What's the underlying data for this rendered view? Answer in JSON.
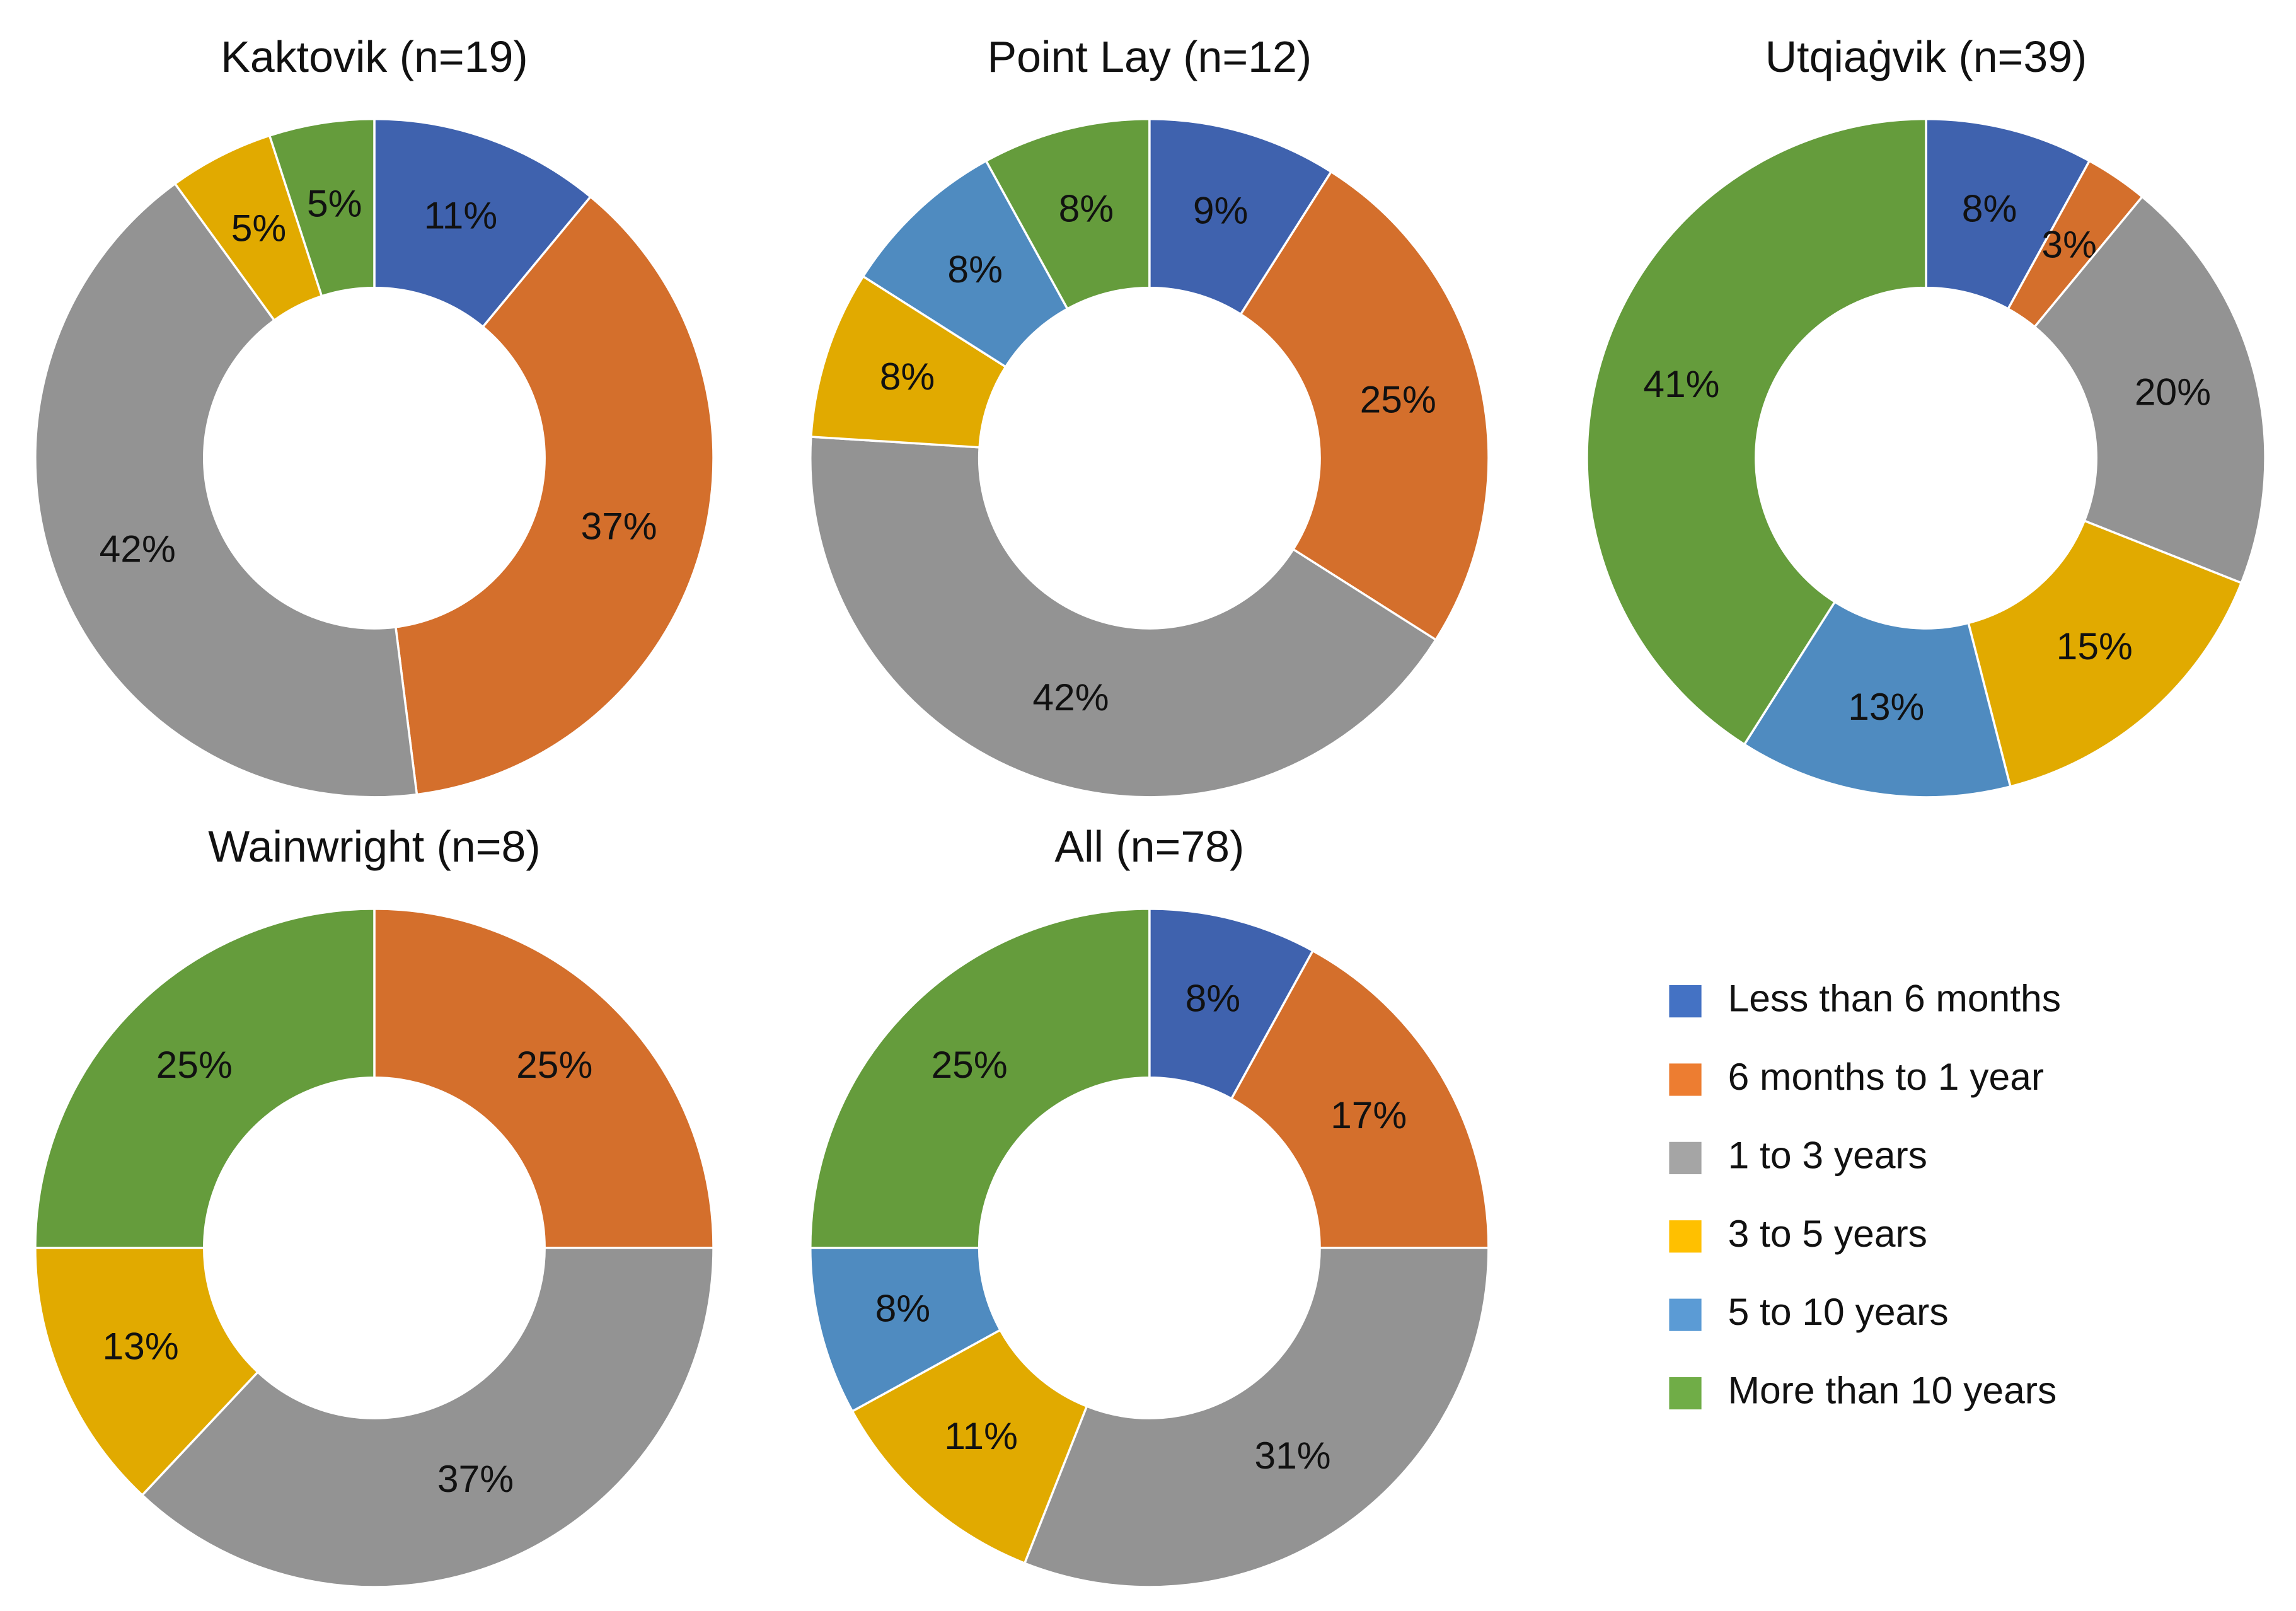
{
  "chart_data": [
    {
      "type": "pie",
      "title": "Kaktovik (n=19)",
      "categories": [
        "Less than 6 months",
        "6 months to 1 year",
        "1 to 3 years",
        "3 to 5 years",
        "More than 10 years"
      ],
      "values": [
        11,
        37,
        42,
        5,
        5
      ],
      "value_labels": [
        "11%",
        "37%",
        "42%",
        "5%",
        "5%"
      ],
      "colors": [
        "#3f62ae",
        "#d46f2c",
        "#939393",
        "#e1aa00",
        "#659c3c"
      ]
    },
    {
      "type": "pie",
      "title": "Point Lay (n=12)",
      "categories": [
        "Less than 6 months",
        "6 months to 1 year",
        "1 to 3 years",
        "3 to 5 years",
        "5 to 10 years",
        "More than 10 years"
      ],
      "values": [
        9,
        25,
        42,
        8,
        8,
        8
      ],
      "value_labels": [
        "9%",
        "25%",
        "42%",
        "8%",
        "8%",
        "8%"
      ],
      "colors": [
        "#3f62ae",
        "#d46f2c",
        "#939393",
        "#e1aa00",
        "#4f8bc0",
        "#659c3c"
      ]
    },
    {
      "type": "pie",
      "title": "Utqiaġvik (n=39)",
      "categories": [
        "Less than 6 months",
        "6 months to 1 year",
        "1 to 3 years",
        "3 to 5 years",
        "5 to 10 years",
        "More than 10 years"
      ],
      "values": [
        8,
        3,
        20,
        15,
        13,
        41
      ],
      "value_labels": [
        "8%",
        "3%",
        "20%",
        "15%",
        "13%",
        "41%"
      ],
      "colors": [
        "#3f62ae",
        "#d46f2c",
        "#939393",
        "#e1aa00",
        "#4f8bc0",
        "#659c3c"
      ]
    },
    {
      "type": "pie",
      "title": "Wainwright (n=8)",
      "categories": [
        "6 months to 1 year",
        "1 to 3 years",
        "3 to 5 years",
        "More than 10 years"
      ],
      "values": [
        25,
        37,
        13,
        25
      ],
      "value_labels": [
        "25%",
        "37%",
        "13%",
        "25%"
      ],
      "colors": [
        "#d46f2c",
        "#939393",
        "#e1aa00",
        "#659c3c"
      ]
    },
    {
      "type": "pie",
      "title": "All (n=78)",
      "categories": [
        "Less than 6 months",
        "6 months to 1 year",
        "1 to 3 years",
        "3 to 5 years",
        "5 to 10 years",
        "More than 10 years"
      ],
      "values": [
        8,
        17,
        31,
        11,
        8,
        25
      ],
      "value_labels": [
        "8%",
        "17%",
        "31%",
        "11%",
        "8%",
        "25%"
      ],
      "colors": [
        "#3f62ae",
        "#d46f2c",
        "#939393",
        "#e1aa00",
        "#4f8bc0",
        "#659c3c"
      ]
    }
  ],
  "legend": [
    {
      "name": "Less than 6 months",
      "color": "#4472c4"
    },
    {
      "name": "6 months to 1 year",
      "color": "#ed7d31"
    },
    {
      "name": "1 to 3 years",
      "color": "#a5a5a5"
    },
    {
      "name": "3 to 5 years",
      "color": "#ffc000"
    },
    {
      "name": "5 to 10 years",
      "color": "#5b9bd5"
    },
    {
      "name": "More than 10 years",
      "color": "#70ad47"
    }
  ]
}
